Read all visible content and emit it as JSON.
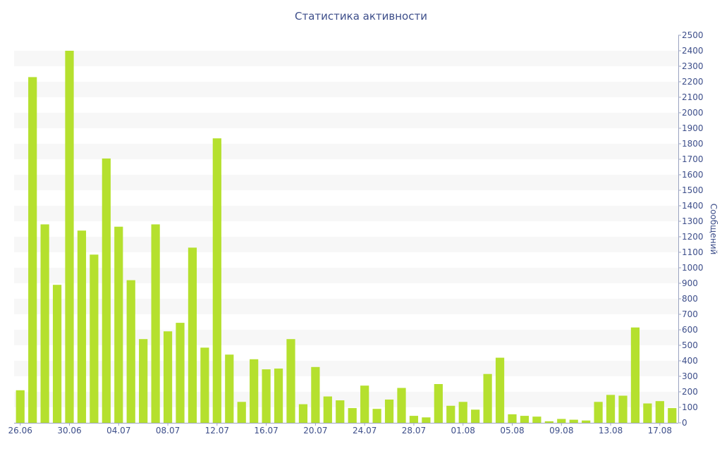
{
  "chart_data": {
    "type": "bar",
    "title": "Статистика активности",
    "ylabel": "Сообщений",
    "xlabel": "",
    "ylim": [
      0,
      2500
    ],
    "yticks": [
      0,
      100,
      200,
      300,
      400,
      500,
      600,
      700,
      800,
      900,
      1000,
      1100,
      1200,
      1300,
      1400,
      1500,
      1600,
      1700,
      1800,
      1900,
      2000,
      2100,
      2200,
      2300,
      2400,
      2500
    ],
    "y_axis_side": "right",
    "grid": "alternating horizontal bands",
    "bar_color": "#b5e02e",
    "band_color": "#f7f7f7",
    "text_color": "#3d4e8a",
    "x_tick_labels": [
      "26.06",
      "30.06",
      "04.07",
      "08.07",
      "12.07",
      "16.07",
      "20.07",
      "24.07",
      "28.07",
      "01.08",
      "05.08",
      "09.08",
      "13.08",
      "17.08"
    ],
    "x_tick_every": 4,
    "categories": [
      "26.06",
      "27.06",
      "28.06",
      "29.06",
      "30.06",
      "01.07",
      "02.07",
      "03.07",
      "04.07",
      "05.07",
      "06.07",
      "07.07",
      "08.07",
      "09.07",
      "10.07",
      "11.07",
      "12.07",
      "13.07",
      "14.07",
      "15.07",
      "16.07",
      "17.07",
      "18.07",
      "19.07",
      "20.07",
      "21.07",
      "22.07",
      "23.07",
      "24.07",
      "25.07",
      "26.07",
      "27.07",
      "28.07",
      "29.07",
      "30.07",
      "31.07",
      "01.08",
      "02.08",
      "03.08",
      "04.08",
      "05.08",
      "06.08",
      "07.08",
      "08.08",
      "09.08",
      "10.08",
      "11.08",
      "12.08",
      "13.08",
      "14.08",
      "15.08",
      "16.08",
      "17.08",
      "18.08"
    ],
    "values": [
      210,
      2230,
      1280,
      890,
      2400,
      1240,
      1085,
      1705,
      1265,
      920,
      540,
      1280,
      590,
      645,
      1130,
      485,
      1835,
      440,
      135,
      410,
      345,
      350,
      540,
      120,
      360,
      170,
      145,
      95,
      240,
      90,
      150,
      225,
      45,
      35,
      250,
      110,
      135,
      85,
      315,
      420,
      55,
      45,
      40,
      10,
      25,
      20,
      15,
      135,
      180,
      175,
      615,
      125,
      140,
      95
    ]
  }
}
